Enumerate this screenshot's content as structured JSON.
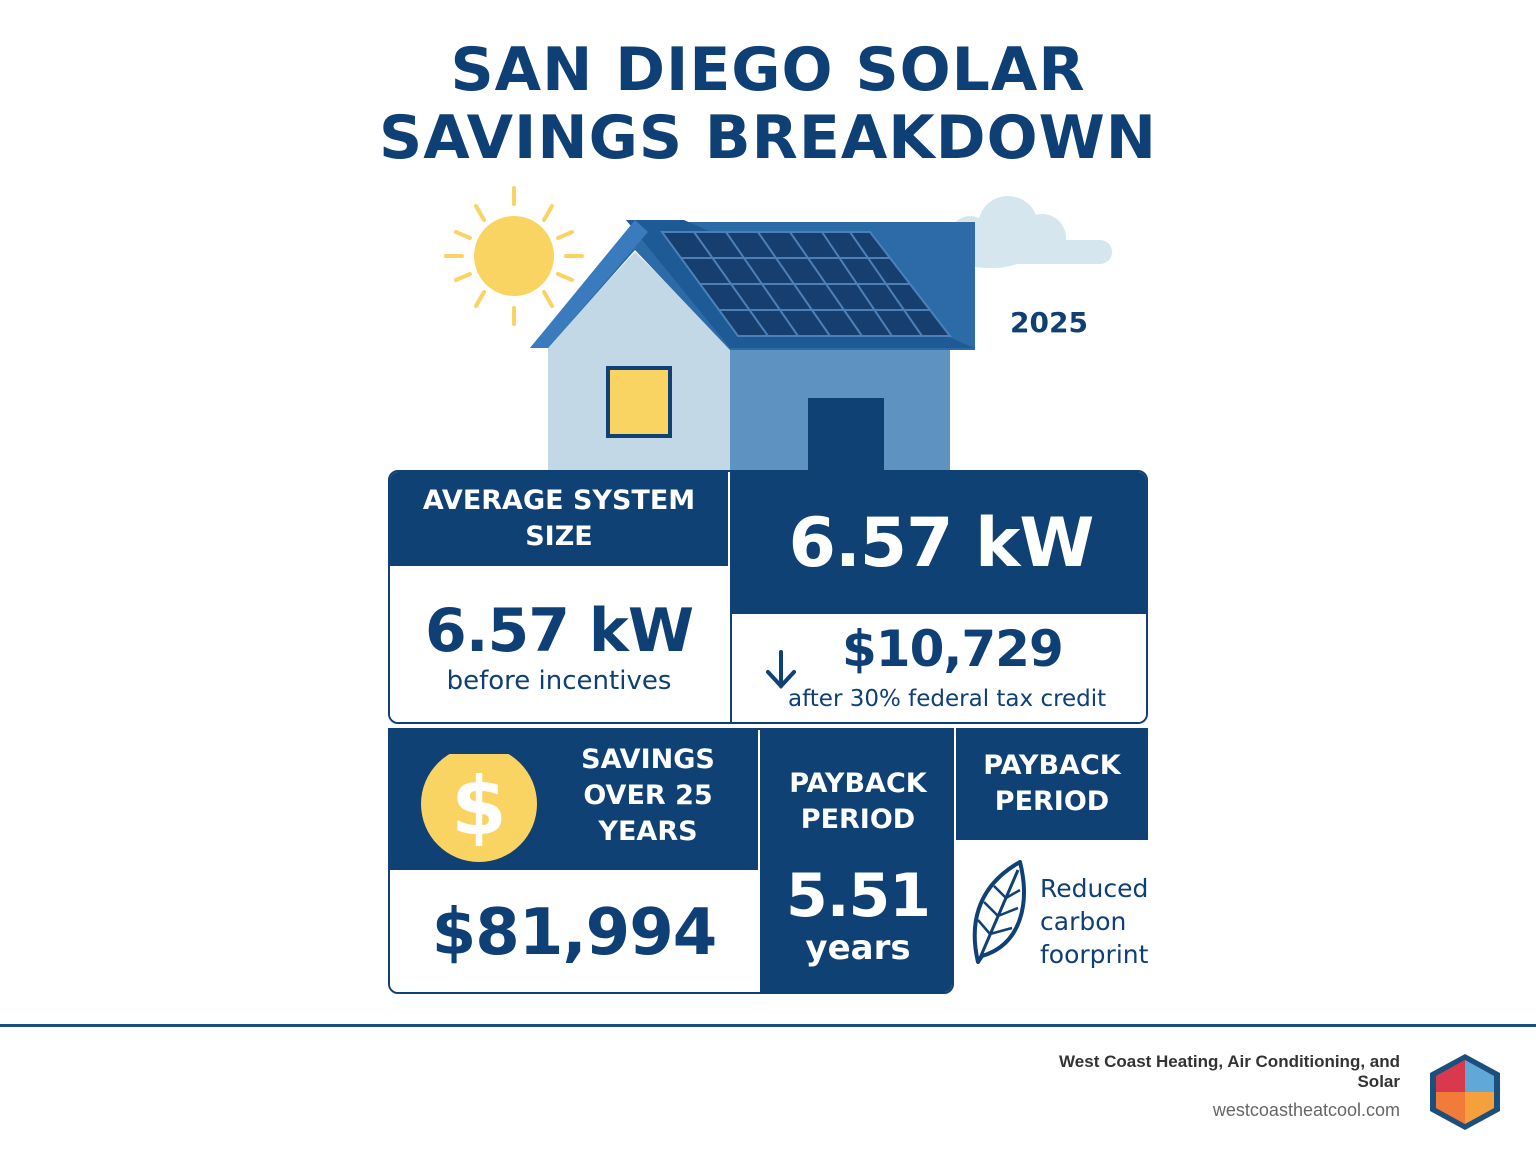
{
  "title": {
    "line1": "SAN DIEGO SOLAR",
    "line2": "SAVINGS BREAKDOWN"
  },
  "year": "2025",
  "system_size": {
    "header": "AVERAGE SYSTEM SIZE",
    "value_right": "6.57 kW",
    "value_left": "6.57 kW",
    "value_left_caption": "before incentives"
  },
  "cost": {
    "value": "$10,729",
    "caption": "after 30% federal tax credit",
    "icon": "arrow-down-icon"
  },
  "savings": {
    "header_line1": "SAVINGS",
    "header_line2": "OVER 25",
    "header_line3": "YEARS",
    "value": "$81,994",
    "icon": "dollar-coin-icon"
  },
  "payback": {
    "header_line1": "PAYBACK",
    "header_line2": "PERIOD",
    "value": "5.51",
    "unit": "years"
  },
  "payback2": {
    "header_line1": "PAYBACK",
    "header_line2": "PERIOD"
  },
  "carbon": {
    "line1": "Reduced",
    "line2": "carbon",
    "line3": "foorprint",
    "icon": "leaf-icon"
  },
  "footer": {
    "company_line1": "West Coast Heating, Air Conditioning, and",
    "company_line2": "Solar",
    "url": "westcoastheatcool.com",
    "logo": "hexagon-logo-icon"
  },
  "colors": {
    "navy": "#0f4175",
    "sun": "#f9d463",
    "house_light": "#c2d8e6",
    "house_mid": "#5e93c1",
    "roof": "#2c6aa8"
  }
}
